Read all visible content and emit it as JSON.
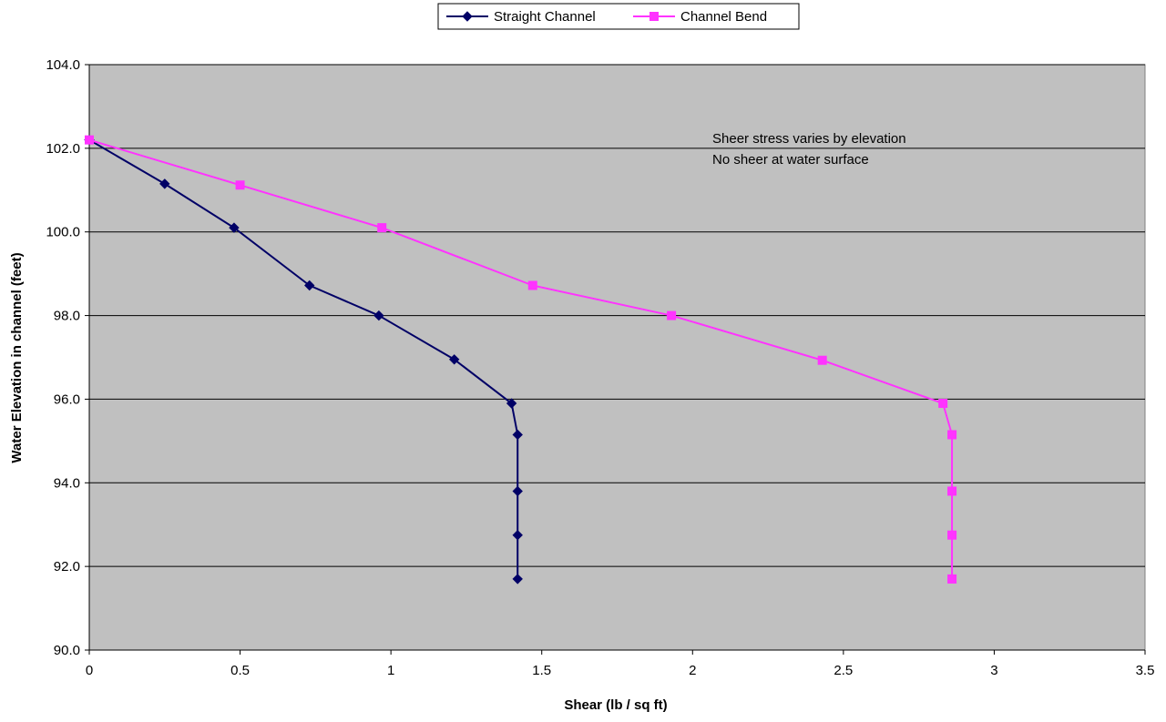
{
  "chart_data": {
    "type": "line",
    "title": "",
    "xlabel": "Shear (lb / sq ft)",
    "ylabel": "Water Elevation in channel (feet)",
    "xlim": [
      0,
      3.5
    ],
    "ylim": [
      90.0,
      104.0
    ],
    "x_ticks": [
      "0",
      "0.5",
      "1",
      "1.5",
      "2",
      "2.5",
      "3",
      "3.5"
    ],
    "y_ticks": [
      "90.0",
      "92.0",
      "94.0",
      "96.0",
      "98.0",
      "100.0",
      "102.0",
      "104.0"
    ],
    "grid": "horizontal",
    "legend_position": "top-center",
    "plot_background": "#c0c0c0",
    "series": [
      {
        "name": "Straight Channel",
        "color": "#000066",
        "marker": "diamond",
        "points": [
          [
            0,
            102.2
          ],
          [
            0.25,
            101.15
          ],
          [
            0.48,
            100.1
          ],
          [
            0.73,
            98.72
          ],
          [
            0.96,
            98.0
          ],
          [
            1.21,
            96.95
          ],
          [
            1.4,
            95.9
          ],
          [
            1.42,
            95.15
          ],
          [
            1.42,
            93.8
          ],
          [
            1.42,
            92.75
          ],
          [
            1.42,
            91.7
          ]
        ]
      },
      {
        "name": "Channel Bend",
        "color": "#ff33ff",
        "marker": "square",
        "points": [
          [
            0,
            102.2
          ],
          [
            0.5,
            101.12
          ],
          [
            0.97,
            100.1
          ],
          [
            1.47,
            98.72
          ],
          [
            1.93,
            98.0
          ],
          [
            2.43,
            96.93
          ],
          [
            2.83,
            95.9
          ],
          [
            2.86,
            95.15
          ],
          [
            2.86,
            93.8
          ],
          [
            2.86,
            92.75
          ],
          [
            2.86,
            91.7
          ]
        ]
      }
    ],
    "annotations": [
      "Sheer stress varies by elevation",
      "No sheer at water surface"
    ]
  }
}
